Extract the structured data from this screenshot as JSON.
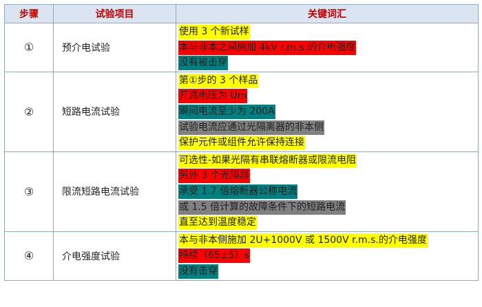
{
  "colors": {
    "yellow": "#ffff00",
    "red": "#ff0000",
    "teal": "#008080",
    "gray": "#808080",
    "header_text": "#c00000",
    "header_bg": "#dbe5f1"
  },
  "table": {
    "headers": {
      "step": "步骤",
      "item": "试验项目",
      "keywords": "关键词汇"
    },
    "rows": [
      {
        "step": "①",
        "item": "预介电试验",
        "keywords": [
          {
            "text": "使用 3 个新试样",
            "color": "yellow"
          },
          {
            "text": "本与非本之间施加 4kV r.m.s.的介电强度",
            "color": "red"
          },
          {
            "text": "没有被击穿",
            "color": "teal"
          }
        ]
      },
      {
        "step": "②",
        "item": "短路电流试验",
        "keywords": [
          {
            "text": "第①步的 3 个样品",
            "color": "yellow"
          },
          {
            "text": "开路电压为 Um",
            "color": "red"
          },
          {
            "text": "瞬间电流至少为 200A",
            "color": "teal"
          },
          {
            "text": "试验电流应通过光隔离器的非本侧",
            "color": "gray"
          },
          {
            "text": "保护元件或组件允许保持连接",
            "color": "yellow"
          }
        ]
      },
      {
        "step": "③",
        "item": "限流短路电流试验",
        "keywords": [
          {
            "text": "可选性-如果光隔有串联熔断器或限流电阻",
            "color": "yellow"
          },
          {
            "text": "另外 3 个光隔器",
            "color": "red"
          },
          {
            "text": "承受 1.7 倍熔断器公称电流",
            "color": "teal"
          },
          {
            "text": "或 1.5 倍计算的故障条件下的短路电流",
            "color": "gray"
          },
          {
            "text": "直至达到温度稳定",
            "color": "yellow"
          }
        ]
      },
      {
        "step": "④",
        "item": "介电强度试验",
        "keywords": [
          {
            "text": "本与非本侧施加 2U+1000V 或 1500V r.m.s.的介电强度",
            "color": "yellow"
          },
          {
            "text": "持续（65±5）s",
            "color": "red"
          },
          {
            "text": "没有击穿",
            "color": "teal"
          }
        ]
      }
    ]
  }
}
